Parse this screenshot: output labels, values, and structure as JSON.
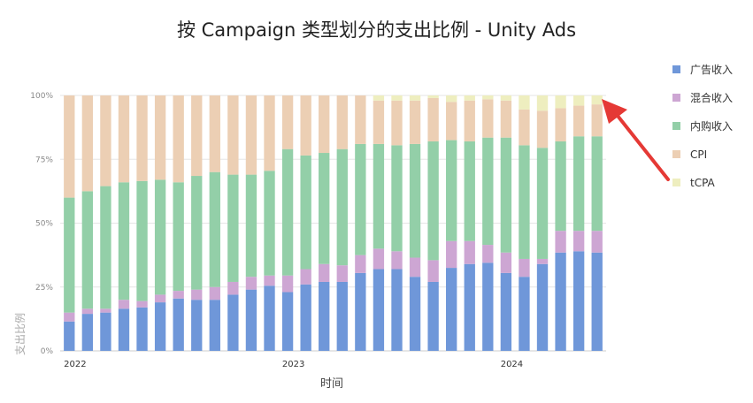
{
  "chart_data": {
    "type": "bar",
    "stacked": true,
    "normalized": true,
    "title": "按 Campaign 类型划分的支出比例 - Unity Ads",
    "xlabel": "时间",
    "ylabel": "支出比例",
    "ylim": [
      0,
      100
    ],
    "y_ticks": [
      "0%",
      "25%",
      "50%",
      "75%",
      "100%"
    ],
    "x_ticks": [
      {
        "label": "2022",
        "index": 0
      },
      {
        "label": "2023",
        "index": 12
      },
      {
        "label": "2024",
        "index": 24
      }
    ],
    "bar_count": 30,
    "legend_position": "right",
    "grid": true,
    "series": [
      {
        "name": "广告收入",
        "color": "#6f97d9",
        "values": [
          11.5,
          14.5,
          15,
          16.5,
          17,
          19,
          20.5,
          20,
          20,
          22,
          24,
          25.5,
          23,
          26,
          27,
          27,
          30.5,
          32,
          32,
          29,
          27,
          32.5,
          34,
          34.5,
          30.5,
          29,
          34,
          38.5,
          39,
          38.5
        ]
      },
      {
        "name": "混合收入",
        "color": "#cda6d3",
        "values": [
          3.5,
          2,
          1.5,
          3.5,
          2.5,
          3,
          3,
          4,
          5,
          5,
          5,
          4,
          6.5,
          6,
          7,
          6.5,
          7,
          8,
          7,
          7.5,
          8.5,
          10.5,
          9,
          7,
          8,
          7,
          2,
          8.5,
          8,
          8.5
        ]
      },
      {
        "name": "内购收入",
        "color": "#93cfa8",
        "values": [
          45,
          46,
          48,
          46,
          47,
          45,
          42.5,
          44.5,
          45,
          42,
          40,
          41,
          49.5,
          44.5,
          43.5,
          45.5,
          43.5,
          41,
          41.5,
          44.5,
          46.5,
          39.5,
          39,
          42,
          45,
          44.5,
          43.5,
          35,
          37,
          37
        ]
      },
      {
        "name": "CPI",
        "color": "#eccfb4",
        "values": [
          40,
          37.5,
          35.5,
          34,
          33.5,
          33,
          34,
          31.5,
          30,
          31,
          31,
          29.5,
          21,
          23.5,
          22.5,
          21,
          19,
          17,
          17.5,
          17,
          17,
          15,
          16,
          15,
          14.5,
          14,
          14.5,
          13,
          12,
          12.5
        ]
      },
      {
        "name": "tCPA",
        "color": "#eeeebf",
        "values": [
          0,
          0,
          0,
          0,
          0,
          0,
          0,
          0,
          0,
          0,
          0,
          0,
          0,
          0,
          0,
          0,
          0,
          2,
          2,
          2,
          1,
          2.5,
          2,
          1.5,
          2,
          5.5,
          6,
          5,
          4,
          3.5
        ]
      }
    ]
  }
}
